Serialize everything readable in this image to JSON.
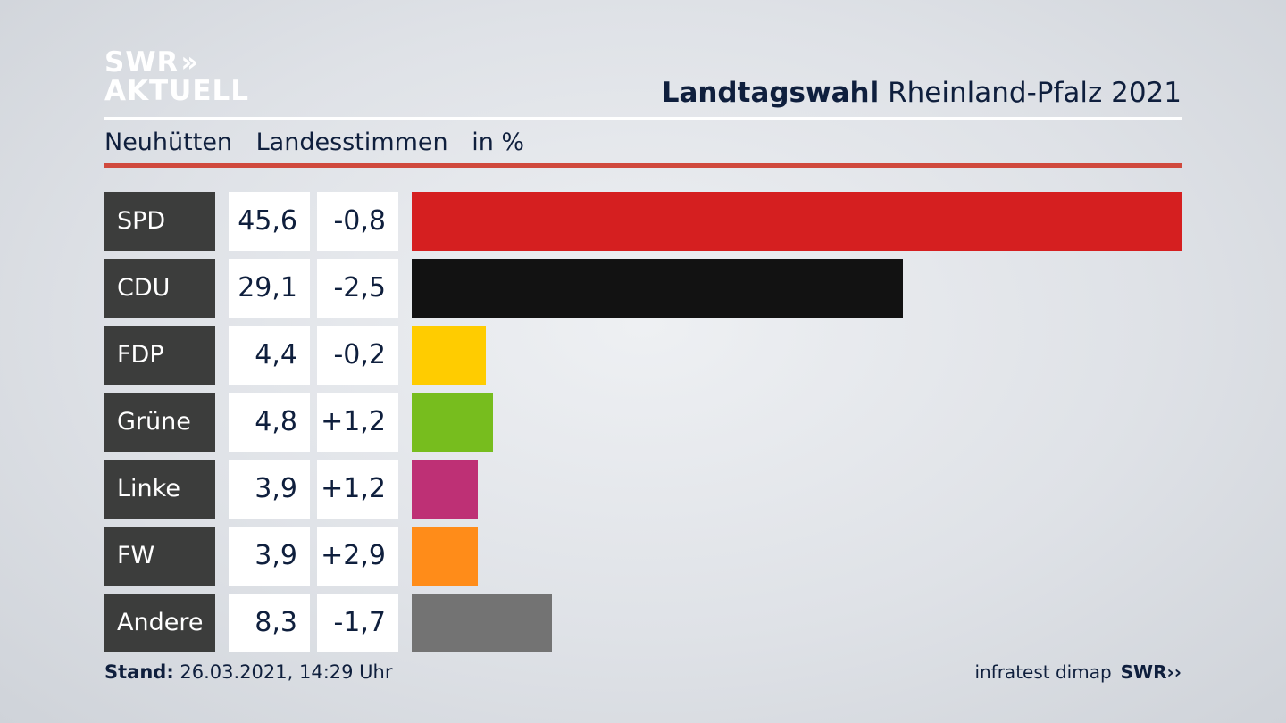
{
  "logo": {
    "line1": "SWR",
    "arrows": "››",
    "line2": "AKTUELL"
  },
  "header": {
    "title_bold": "Landtagswahl",
    "title_rest": " Rheinland-Pfalz 2021"
  },
  "subtitle": {
    "place": "Neuhütten",
    "type": "Landesstimmen",
    "unit": "in %"
  },
  "colors": {
    "rule": "#d0493d",
    "label_bg": "#3c3d3c",
    "text": "#0f1f3d"
  },
  "chart_data": {
    "type": "bar",
    "categories": [
      "SPD",
      "CDU",
      "FDP",
      "Grüne",
      "Linke",
      "FW",
      "Andere"
    ],
    "values": [
      45.6,
      29.1,
      4.4,
      4.8,
      3.9,
      3.9,
      8.3
    ],
    "value_labels": [
      "45,6",
      "29,1",
      "4,4",
      "4,8",
      "3,9",
      "3,9",
      "8,3"
    ],
    "diff_labels": [
      "-0,8",
      "-2,5",
      "-0,2",
      "+1,2",
      "+1,2",
      "+2,9",
      "-1,7"
    ],
    "colors": [
      "#d51f20",
      "#121212",
      "#ffcc00",
      "#77bd1e",
      "#be3075",
      "#ff8c19",
      "#737373"
    ],
    "orientation": "horizontal",
    "xlim": [
      0,
      45.6
    ]
  },
  "footer": {
    "stand_label": "Stand:",
    "stand_value": " 26.03.2021, 14:29 Uhr",
    "source": "infratest dimap",
    "brand": "SWR",
    "brand_arrows": "››"
  }
}
